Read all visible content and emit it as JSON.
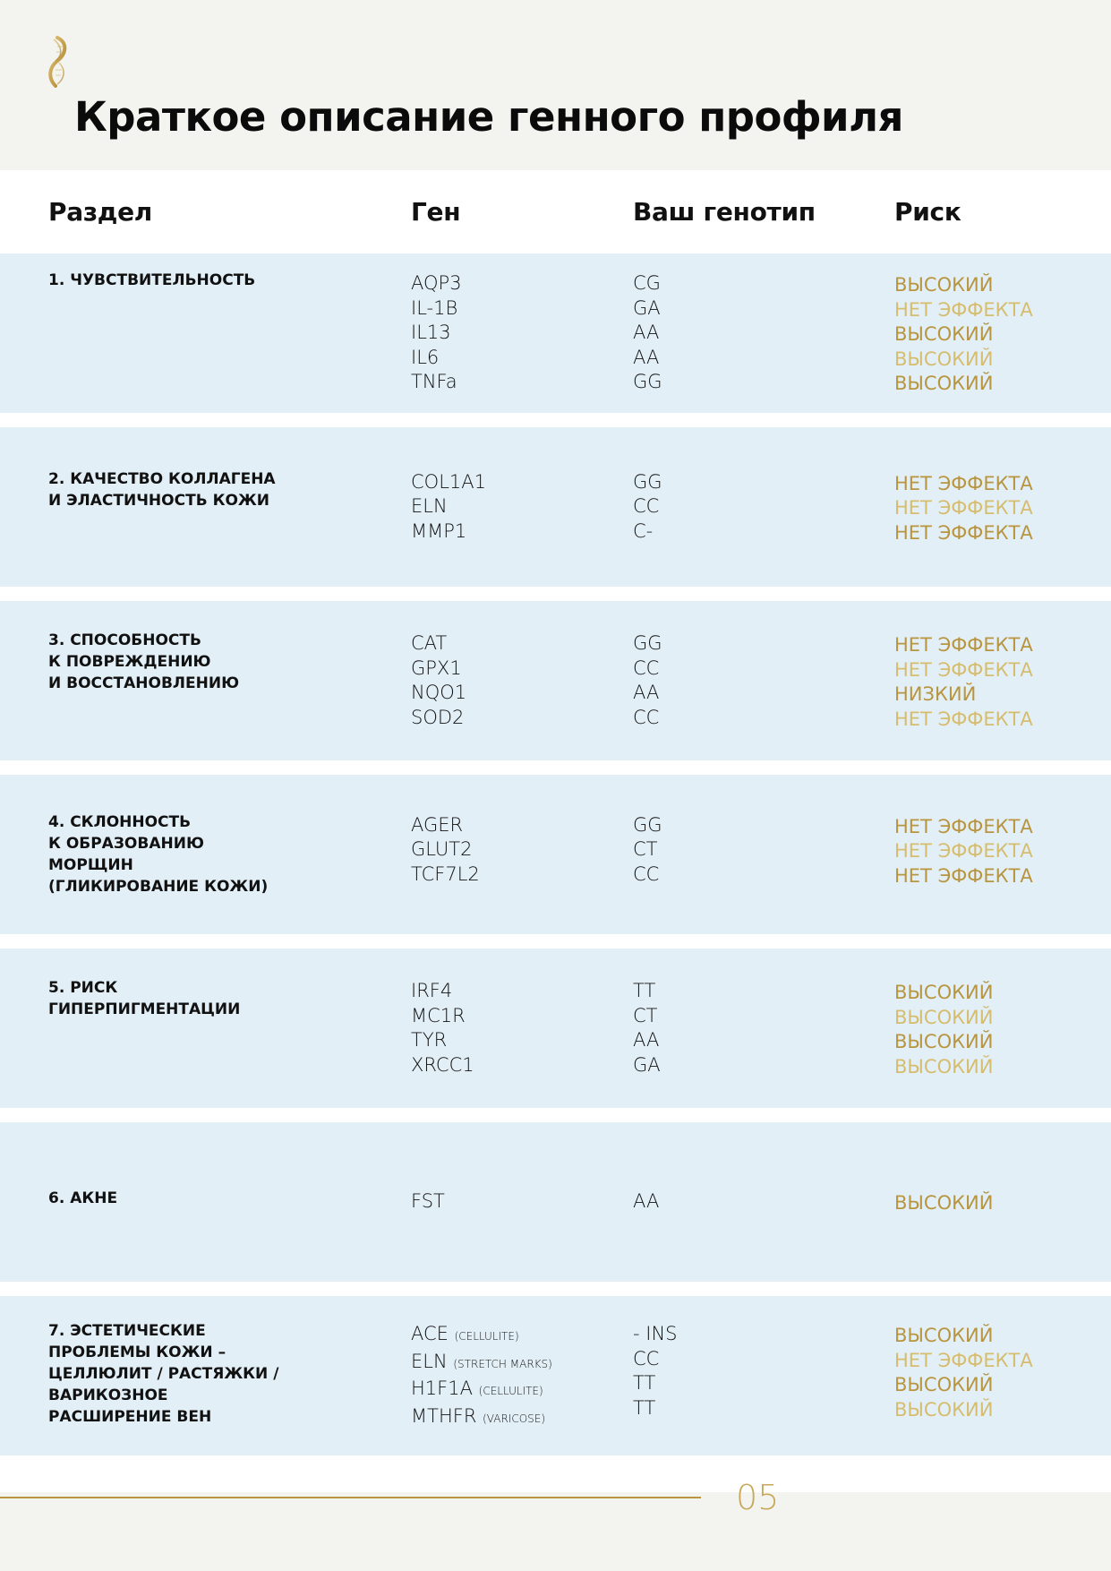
{
  "title": "Краткое описание генного профиля",
  "colors": {
    "gold_dark": "#b8953f",
    "gold_light": "#d6bd6e",
    "row_bg": "#e3eff7",
    "page_bg": "#f3f3f0"
  },
  "table": {
    "headers": [
      "Раздел",
      "Ген",
      "Ваш генотип",
      "Риск"
    ],
    "rows": [
      {
        "section": "1. ЧУВСТВИТЕЛЬНОСТЬ",
        "genes": [
          {
            "name": "AQP3"
          },
          {
            "name": "IL-1B"
          },
          {
            "name": "IL13"
          },
          {
            "name": "IL6"
          },
          {
            "name": "TNFa"
          }
        ],
        "genotypes": [
          "CG",
          "GA",
          "AA",
          "AA",
          "GG"
        ],
        "risks": [
          "ВЫСОКИЙ",
          "НЕТ ЭФФЕКТА",
          "ВЫСОКИЙ",
          "ВЫСОКИЙ",
          "ВЫСОКИЙ"
        ]
      },
      {
        "section": "2. КАЧЕСТВО КОЛЛАГЕНА\nИ ЭЛАСТИЧНОСТЬ КОЖИ",
        "genes": [
          {
            "name": "COL1A1"
          },
          {
            "name": "ELN"
          },
          {
            "name": "MMP1"
          }
        ],
        "genotypes": [
          "GG",
          "CC",
          "C-"
        ],
        "risks": [
          "НЕТ ЭФФЕКТА",
          "НЕТ ЭФФЕКТА",
          "НЕТ ЭФФЕКТА"
        ]
      },
      {
        "section": "3. СПОСОБНОСТЬ\nК ПОВРЕЖДЕНИЮ\nИ ВОССТАНОВЛЕНИЮ",
        "genes": [
          {
            "name": "CAT"
          },
          {
            "name": "GPX1"
          },
          {
            "name": "NQO1"
          },
          {
            "name": "SOD2"
          }
        ],
        "genotypes": [
          "GG",
          "CC",
          "AA",
          "CC"
        ],
        "risks": [
          "НЕТ ЭФФЕКТА",
          "НЕТ ЭФФЕКТА",
          "НИЗКИЙ",
          "НЕТ ЭФФЕКТА"
        ]
      },
      {
        "section": "4. СКЛОННОСТЬ\nК ОБРАЗОВАНИЮ\nМОРЩИН\n(ГЛИКИРОВАНИЕ КОЖИ)",
        "genes": [
          {
            "name": "AGER"
          },
          {
            "name": "GLUT2"
          },
          {
            "name": "TCF7L2"
          }
        ],
        "genotypes": [
          "GG",
          "CT",
          "CC"
        ],
        "risks": [
          "НЕТ ЭФФЕКТА",
          "НЕТ ЭФФЕКТА",
          "НЕТ ЭФФЕКТА"
        ]
      },
      {
        "section": "5. РИСК\nГИПЕРПИГМЕНТАЦИИ",
        "genes": [
          {
            "name": "IRF4"
          },
          {
            "name": "MC1R"
          },
          {
            "name": "TYR"
          },
          {
            "name": "XRCC1"
          }
        ],
        "genotypes": [
          "TT",
          "CT",
          "AA",
          "GA"
        ],
        "risks": [
          "ВЫСОКИЙ",
          "ВЫСОКИЙ",
          "ВЫСОКИЙ",
          "ВЫСОКИЙ"
        ]
      },
      {
        "section": "6. АКНЕ",
        "genes": [
          {
            "name": "FST"
          }
        ],
        "genotypes": [
          "AA"
        ],
        "risks": [
          "ВЫСОКИЙ"
        ]
      },
      {
        "section": "7. ЭСТЕТИЧЕСКИЕ\nПРОБЛЕМЫ КОЖИ –\nЦЕЛЛЮЛИТ / РАСТЯЖКИ /\nВАРИКОЗНОЕ\nРАСШИРЕНИЕ ВЕН",
        "genes": [
          {
            "name": "ACE",
            "note": "(CELLULITE)"
          },
          {
            "name": "ELN",
            "note": "(STRETCH MARKS)"
          },
          {
            "name": "H1F1A",
            "note": "(CELLULITE)"
          },
          {
            "name": "MTHFR",
            "note": "(VARICOSE)"
          }
        ],
        "genotypes": [
          "- INS",
          "CC",
          "TT",
          "TT"
        ],
        "risks": [
          "ВЫСОКИЙ",
          "НЕТ ЭФФЕКТА",
          "ВЫСОКИЙ",
          "ВЫСОКИЙ"
        ]
      }
    ]
  },
  "footer": {
    "page_number": "05"
  }
}
